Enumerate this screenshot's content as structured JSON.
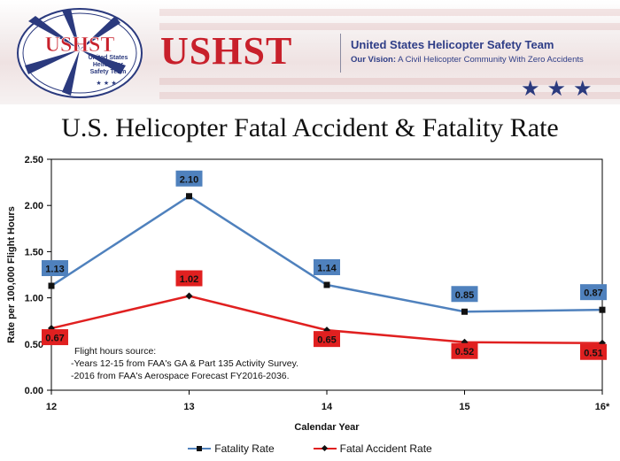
{
  "header": {
    "logo_text": "USHST",
    "logo_subtitle": [
      "United States",
      "Helicopter",
      "Safety Team"
    ],
    "brand": "USHST",
    "org_name": "United States Helicopter Safety Team",
    "vision_label": "Our Vision:",
    "vision_text": " A Civil Helicopter Community With Zero Accidents",
    "banner_stars": "★★★",
    "logo_stars": "★ ★ ★"
  },
  "chart_data": {
    "type": "line",
    "title": "U.S. Helicopter Fatal Accident & Fatality Rate",
    "xlabel": "Calendar Year",
    "ylabel": "Rate per 100,000 Flight Hours",
    "categories": [
      "12",
      "13",
      "14",
      "15",
      "16*"
    ],
    "ylim": [
      0,
      2.5
    ],
    "yticks": [
      "0.00",
      "0.50",
      "1.00",
      "1.50",
      "2.00",
      "2.50"
    ],
    "grid": false,
    "series": [
      {
        "name": "Fatality Rate",
        "color": "#4f81bd",
        "marker": "square",
        "values": [
          1.13,
          2.1,
          1.14,
          0.85,
          0.87
        ],
        "labels": [
          "1.13",
          "2.10",
          "1.14",
          "0.85",
          "0.87"
        ]
      },
      {
        "name": "Fatal Accident Rate",
        "color": "#e02020",
        "marker": "diamond",
        "values": [
          0.67,
          1.02,
          0.65,
          0.52,
          0.51
        ],
        "labels": [
          "0.67",
          "1.02",
          "0.65",
          "0.52",
          "0.51"
        ]
      }
    ],
    "annotation": [
      "Flight hours source:",
      "-Years 12-15 from FAA's GA & Part 135 Activity Survey.",
      "-2016 from FAA's Aerospace Forecast FY2016-2036."
    ],
    "legend_position": "bottom"
  }
}
